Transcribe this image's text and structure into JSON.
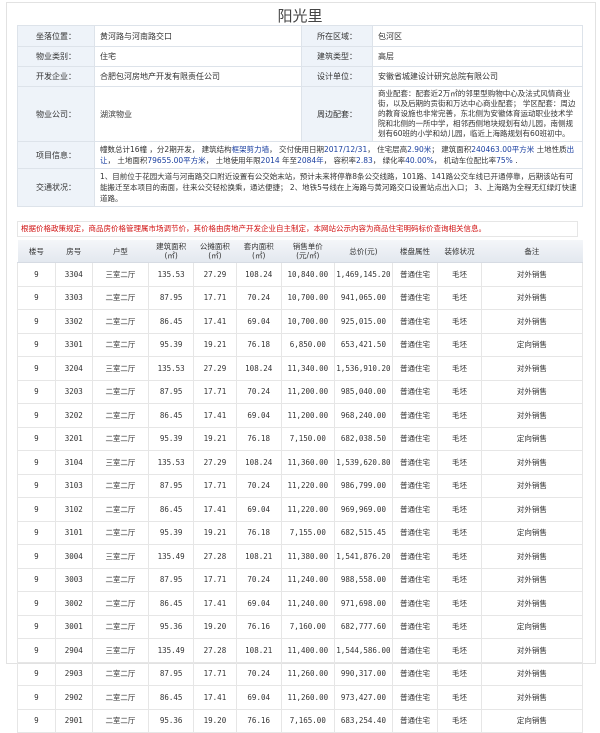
{
  "title": "阳光里",
  "info": {
    "location_label": "坐落位置：",
    "location": "黄河路与河南路交口",
    "district_label": "所在区域：",
    "district": "包河区",
    "type_label": "物业类别：",
    "type": "住宅",
    "building_label": "建筑类型：",
    "building": "高层",
    "developer_label": "开发企业：",
    "developer": "合肥包河房地产开发有限责任公司",
    "designer_label": "设计单位：",
    "designer": "安徽省城建设计研究总院有限公司",
    "property_label": "物业公司：",
    "property": "湖滨物业",
    "nearby_label": "周边配套：",
    "nearby": "商业配套：配套近2万㎡的邻里型购物中心及法式风情商业街，以及后期的贡街和万达中心商业配套； 学区配套：周边的教育设施也非常完善，东北侧为安徽体育运动职业技术学院和北侧的一所中学，相邻西侧地块规划有幼儿园，南侧规划有60班的小学和幼儿园，临近上海路规划有60班初中。",
    "project_label": "项目信息：",
    "project": {
      "p1": "幢数总计16幢 ，分2期开发， 建筑结构",
      "structure": "框架剪力墙",
      "p2": "， 交付使用日期",
      "delivery": "2017/12/31",
      "p3": "， 住宅层高",
      "height": "2.90米",
      "p4": "； 建筑面积",
      "area": "240463.00平方米",
      "p5": " 土地性质",
      "land": "出让",
      "p6": "， 土地面积",
      "land_area": "79655.00平方米",
      "p7": "， 土地使用年限",
      "years_from": "2014",
      "p8": " 年至",
      "years_to": "2084年",
      "p9": "， 容积率",
      "far": "2.83",
      "p10": "， 绿化率",
      "green": "40.00%",
      "p11": "， 机动车位配比率",
      "parking": "75%",
      "p12": " ."
    },
    "traffic_label": "交通状况：",
    "traffic": "1、目前位于花园大道与河南路交口附近设置有公交始末站，预计未来将停靠8条公交线路，101路、141路公交车线已开通停靠，后期该站有可能搬迁至本项目的南面，往来公交轻松换乘，通达便捷； 2、地铁5号线在上海路与黄河路交口设置站点出入口； 3、上海路为全程无红绿灯快速道路。"
  },
  "notice": "根据价格政策规定，商品房价格管理属市场调节价，其价格由房地产开发企业自主制定，本网站公示内容为商品住宅明码标价查询相关信息。",
  "colors": {
    "notice": "#d01010",
    "label_bg": "#eef3f9",
    "highlight": "#1a3fa0"
  },
  "columns": [
    "楼号",
    "房号",
    "户型",
    "建筑面积\n(㎡)",
    "公摊面积\n(㎡)",
    "套内面积\n(㎡)",
    "销售单价\n(元/㎡)",
    "总价(元)",
    "楼盘属性",
    "装修状况",
    "备注"
  ],
  "rows": [
    [
      "9",
      "3304",
      "三室二厅",
      "135.53",
      "27.29",
      "108.24",
      "10,840.00",
      "1,469,145.20",
      "普通住宅",
      "毛坯",
      "对外销售"
    ],
    [
      "9",
      "3303",
      "二室二厅",
      "87.95",
      "17.71",
      "70.24",
      "10,700.00",
      "941,065.00",
      "普通住宅",
      "毛坯",
      "对外销售"
    ],
    [
      "9",
      "3302",
      "二室二厅",
      "86.45",
      "17.41",
      "69.04",
      "10,700.00",
      "925,015.00",
      "普通住宅",
      "毛坯",
      "对外销售"
    ],
    [
      "9",
      "3301",
      "二室二厅",
      "95.39",
      "19.21",
      "76.18",
      "6,850.00",
      "653,421.50",
      "普通住宅",
      "毛坯",
      "定向销售"
    ],
    [
      "9",
      "3204",
      "三室二厅",
      "135.53",
      "27.29",
      "108.24",
      "11,340.00",
      "1,536,910.20",
      "普通住宅",
      "毛坯",
      "对外销售"
    ],
    [
      "9",
      "3203",
      "二室二厅",
      "87.95",
      "17.71",
      "70.24",
      "11,200.00",
      "985,040.00",
      "普通住宅",
      "毛坯",
      "对外销售"
    ],
    [
      "9",
      "3202",
      "二室二厅",
      "86.45",
      "17.41",
      "69.04",
      "11,200.00",
      "968,240.00",
      "普通住宅",
      "毛坯",
      "对外销售"
    ],
    [
      "9",
      "3201",
      "二室二厅",
      "95.39",
      "19.21",
      "76.18",
      "7,150.00",
      "682,038.50",
      "普通住宅",
      "毛坯",
      "定向销售"
    ],
    [
      "9",
      "3104",
      "三室二厅",
      "135.53",
      "27.29",
      "108.24",
      "11,360.00",
      "1,539,620.80",
      "普通住宅",
      "毛坯",
      "对外销售"
    ],
    [
      "9",
      "3103",
      "二室二厅",
      "87.95",
      "17.71",
      "70.24",
      "11,220.00",
      "986,799.00",
      "普通住宅",
      "毛坯",
      "对外销售"
    ],
    [
      "9",
      "3102",
      "二室二厅",
      "86.45",
      "17.41",
      "69.04",
      "11,220.00",
      "969,969.00",
      "普通住宅",
      "毛坯",
      "对外销售"
    ],
    [
      "9",
      "3101",
      "二室二厅",
      "95.39",
      "19.21",
      "76.18",
      "7,155.00",
      "682,515.45",
      "普通住宅",
      "毛坯",
      "定向销售"
    ],
    [
      "9",
      "3004",
      "三室二厅",
      "135.49",
      "27.28",
      "108.21",
      "11,380.00",
      "1,541,876.20",
      "普通住宅",
      "毛坯",
      "对外销售"
    ],
    [
      "9",
      "3003",
      "二室二厅",
      "87.95",
      "17.71",
      "70.24",
      "11,240.00",
      "988,558.00",
      "普通住宅",
      "毛坯",
      "对外销售"
    ],
    [
      "9",
      "3002",
      "二室二厅",
      "86.45",
      "17.41",
      "69.04",
      "11,240.00",
      "971,698.00",
      "普通住宅",
      "毛坯",
      "对外销售"
    ],
    [
      "9",
      "3001",
      "二室二厅",
      "95.36",
      "19.20",
      "76.16",
      "7,160.00",
      "682,777.60",
      "普通住宅",
      "毛坯",
      "定向销售"
    ],
    [
      "9",
      "2904",
      "三室二厅",
      "135.49",
      "27.28",
      "108.21",
      "11,400.00",
      "1,544,586.00",
      "普通住宅",
      "毛坯",
      "对外销售"
    ],
    [
      "9",
      "2903",
      "二室二厅",
      "87.95",
      "17.71",
      "70.24",
      "11,260.00",
      "990,317.00",
      "普通住宅",
      "毛坯",
      "对外销售"
    ],
    [
      "9",
      "2902",
      "二室二厅",
      "86.45",
      "17.41",
      "69.04",
      "11,260.00",
      "973,427.00",
      "普通住宅",
      "毛坯",
      "对外销售"
    ],
    [
      "9",
      "2901",
      "二室二厅",
      "95.36",
      "19.20",
      "76.16",
      "7,165.00",
      "683,254.40",
      "普通住宅",
      "毛坯",
      "定向销售"
    ]
  ]
}
